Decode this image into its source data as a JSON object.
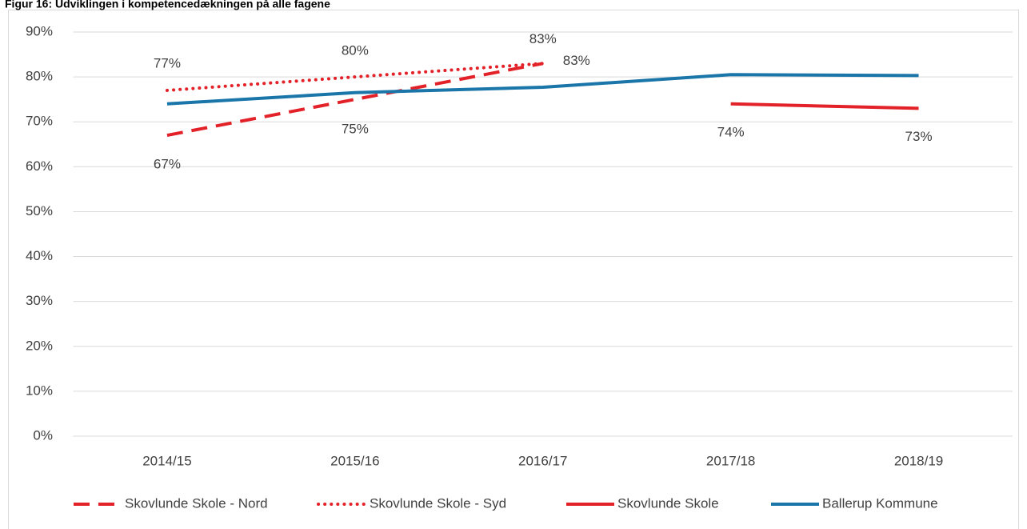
{
  "chart_data": {
    "type": "line",
    "title": "Figur 16: Udviklingen i kompetencedækningen på alle fagene",
    "categories": [
      "2014/15",
      "2015/16",
      "2016/17",
      "2017/18",
      "2018/19"
    ],
    "series": [
      {
        "name": "Skovlunde Skole - Nord",
        "color": "#e32128",
        "style": "dashed",
        "values": [
          67,
          75,
          83,
          null,
          null
        ],
        "value_labels": [
          "67%",
          "75%",
          "83%",
          null,
          null
        ]
      },
      {
        "name": "Skovlunde Skole - Syd",
        "color": "#e32128",
        "style": "dotted",
        "values": [
          77,
          80,
          83,
          null,
          null
        ],
        "value_labels": [
          "77%",
          "80%",
          "83%",
          null,
          null
        ]
      },
      {
        "name": "Skovlunde Skole",
        "color": "#e32128",
        "style": "solid",
        "values": [
          null,
          null,
          null,
          74,
          73
        ],
        "value_labels": [
          null,
          null,
          null,
          "74%",
          "73%"
        ]
      },
      {
        "name": "Ballerup Kommune",
        "color": "#1a75a9",
        "style": "solid",
        "values": [
          74,
          76.5,
          77.7,
          80.5,
          80.3
        ]
      }
    ],
    "ylim": [
      0,
      90
    ],
    "yticks": [
      {
        "value": 0,
        "label": "0%"
      },
      {
        "value": 10,
        "label": "10%"
      },
      {
        "value": 20,
        "label": "20%"
      },
      {
        "value": 30,
        "label": "30%"
      },
      {
        "value": 40,
        "label": "40%"
      },
      {
        "value": 50,
        "label": "50%"
      },
      {
        "value": 60,
        "label": "60%"
      },
      {
        "value": 70,
        "label": "70%"
      },
      {
        "value": 80,
        "label": "80%"
      },
      {
        "value": 90,
        "label": "90%"
      }
    ],
    "grid": true,
    "legend": "bottom"
  }
}
